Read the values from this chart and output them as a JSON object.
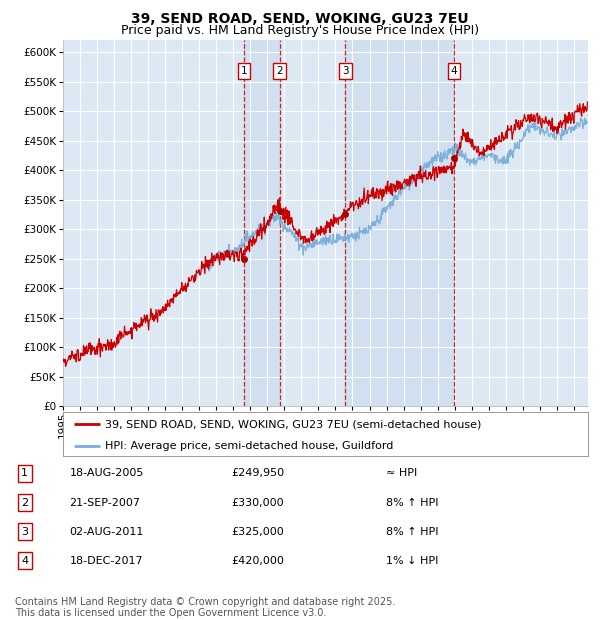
{
  "title": "39, SEND ROAD, SEND, WOKING, GU23 7EU",
  "subtitle": "Price paid vs. HM Land Registry's House Price Index (HPI)",
  "ylim": [
    0,
    620000
  ],
  "yticks": [
    0,
    50000,
    100000,
    150000,
    200000,
    250000,
    300000,
    350000,
    400000,
    450000,
    500000,
    550000,
    600000
  ],
  "xlim_start": 1995.0,
  "xlim_end": 2025.83,
  "background_color": "#ffffff",
  "plot_bg_color": "#dce9f5",
  "grid_color": "#ffffff",
  "hpi_line_color": "#7aadda",
  "price_line_color": "#cc0000",
  "sale_marker_color": "#aa0000",
  "vline_color": "#cc0000",
  "shade_color": "#c5d9ee",
  "legend1_label": "39, SEND ROAD, SEND, WOKING, GU23 7EU (semi-detached house)",
  "legend2_label": "HPI: Average price, semi-detached house, Guildford",
  "sales": [
    {
      "num": 1,
      "date_dec": 2005.62,
      "price": 249950,
      "label": "1",
      "date_str": "18-AUG-2005",
      "hpi_rel": "≈ HPI"
    },
    {
      "num": 2,
      "date_dec": 2007.72,
      "price": 330000,
      "label": "2",
      "date_str": "21-SEP-2007",
      "hpi_rel": "8% ↑ HPI"
    },
    {
      "num": 3,
      "date_dec": 2011.58,
      "price": 325000,
      "label": "3",
      "date_str": "02-AUG-2011",
      "hpi_rel": "8% ↑ HPI"
    },
    {
      "num": 4,
      "date_dec": 2017.96,
      "price": 420000,
      "label": "4",
      "date_str": "18-DEC-2017",
      "hpi_rel": "1% ↓ HPI"
    }
  ],
  "footnote": "Contains HM Land Registry data © Crown copyright and database right 2025.\nThis data is licensed under the Open Government Licence v3.0.",
  "title_fontsize": 10,
  "subtitle_fontsize": 9,
  "tick_fontsize": 7.5,
  "legend_fontsize": 8,
  "table_fontsize": 8,
  "footnote_fontsize": 7
}
